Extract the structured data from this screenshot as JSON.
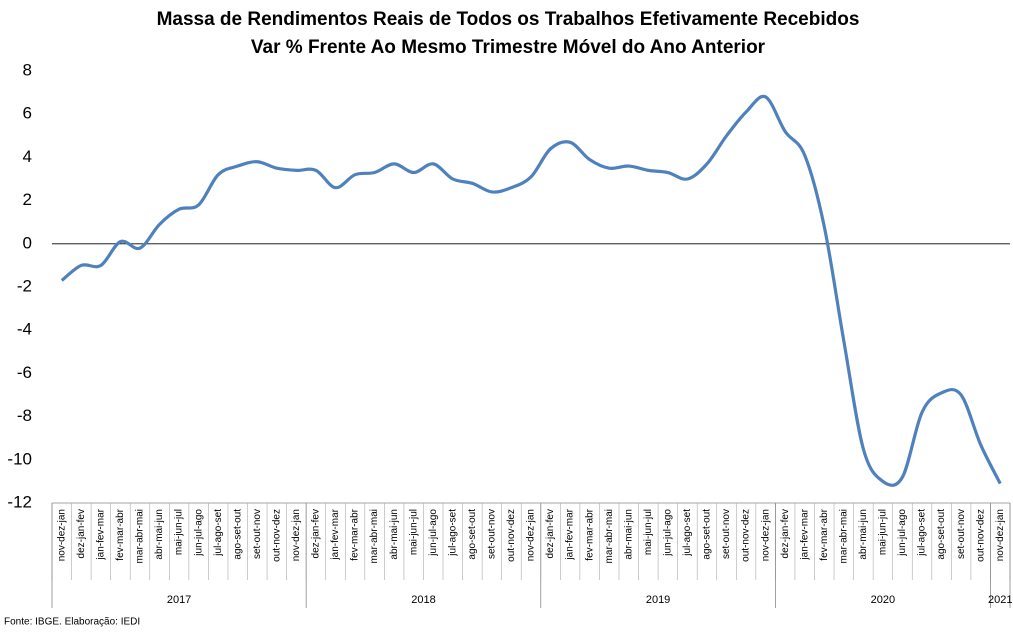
{
  "chart_data": {
    "type": "line",
    "title": "Massa de Rendimentos Reais de Todos os Trabalhos Efetivamente Recebidos",
    "subtitle": "Var % Frente Ao Mesmo Trimestre Móvel do Ano Anterior",
    "source": "Fonte: IBGE. Elaboração: IEDI",
    "categories": [
      "nov-dez-jan",
      "dez-jan-fev",
      "jan-fev-mar",
      "fev-mar-abr",
      "mar-abr-mai",
      "abr-mai-jun",
      "mai-jun-jul",
      "jun-jul-ago",
      "jul-ago-set",
      "ago-set-out",
      "set-out-nov",
      "out-nov-dez",
      "nov-dez-jan",
      "dez-jan-fev",
      "jan-fev-mar",
      "fev-mar-abr",
      "mar-abr-mai",
      "abr-mai-jun",
      "mai-jun-jul",
      "jun-jul-ago",
      "jul-ago-set",
      "ago-set-out",
      "set-out-nov",
      "out-nov-dez",
      "nov-dez-jan",
      "dez-jan-fev",
      "jan-fev-mar",
      "fev-mar-abr",
      "mar-abr-mai",
      "abr-mai-jun",
      "mai-jun-jul",
      "jun-jul-ago",
      "jul-ago-set",
      "ago-set-out",
      "set-out-nov",
      "out-nov-dez",
      "nov-dez-jan",
      "dez-jan-fev",
      "jan-fev-mar",
      "fev-mar-abr",
      "mar-abr-mai",
      "abr-mai-jun",
      "mai-jun-jul",
      "jun-jul-ago",
      "jul-ago-set",
      "ago-set-out",
      "set-out-nov",
      "out-nov-dez",
      "nov-dez-jan"
    ],
    "groups": [
      {
        "label": "2017",
        "span": 13
      },
      {
        "label": "2018",
        "span": 12
      },
      {
        "label": "2019",
        "span": 12
      },
      {
        "label": "2020",
        "span": 11
      },
      {
        "label": "2021",
        "span": 1
      }
    ],
    "series": [
      {
        "name": "Massa de Rendimentos",
        "color": "#4f81bd",
        "values": [
          -1.7,
          -1.0,
          -1.0,
          0.1,
          -0.2,
          0.9,
          1.6,
          1.8,
          3.2,
          3.6,
          3.8,
          3.5,
          3.4,
          3.4,
          2.6,
          3.2,
          3.3,
          3.7,
          3.3,
          3.7,
          3.0,
          2.8,
          2.4,
          2.6,
          3.1,
          4.4,
          4.7,
          3.9,
          3.5,
          3.6,
          3.4,
          3.3,
          3.0,
          3.7,
          5.0,
          6.1,
          6.8,
          5.2,
          4.1,
          0.8,
          -4.5,
          -9.5,
          -11.0,
          -10.8,
          -7.8,
          -6.9,
          -7.0,
          -9.3,
          -11.1
        ]
      }
    ],
    "ylim": [
      -12,
      8
    ],
    "yticks": [
      -12,
      -10,
      -8,
      -6,
      -4,
      -2,
      0,
      2,
      4,
      6,
      8
    ],
    "zero_line": true
  }
}
